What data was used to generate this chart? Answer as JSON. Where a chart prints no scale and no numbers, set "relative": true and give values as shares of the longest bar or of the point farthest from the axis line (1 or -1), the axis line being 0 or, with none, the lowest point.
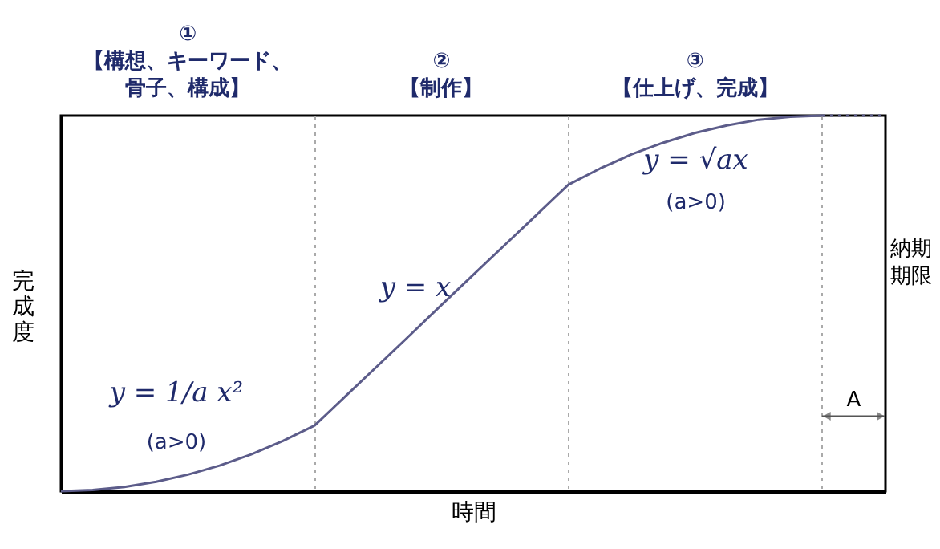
{
  "chart_data": {
    "type": "line",
    "relative": true,
    "xlabel": "時間",
    "ylabel": "完成度",
    "grid": "x",
    "categories": [
      null,
      null,
      null,
      null,
      null,
      null,
      null,
      null,
      null,
      null,
      null,
      null,
      null,
      null,
      null,
      null,
      null,
      null,
      null,
      null,
      null,
      null,
      null,
      null,
      null,
      null,
      null
    ],
    "series": [
      {
        "color": "#5c5c8a",
        "line_style": "solid",
        "values": [
          0,
          0.003,
          0.011,
          0.025,
          0.044,
          0.068,
          0.098,
          0.134,
          0.175,
          0.255,
          0.335,
          0.415,
          0.496,
          0.576,
          0.656,
          0.736,
          0.816,
          0.859,
          0.897,
          0.928,
          0.954,
          0.974,
          0.989,
          0.997,
          1,
          null,
          null
        ]
      },
      {
        "color": "#5c5c8a",
        "line_style": "dotted",
        "values": [
          null,
          null,
          null,
          null,
          null,
          null,
          null,
          null,
          null,
          null,
          null,
          null,
          null,
          null,
          null,
          null,
          null,
          null,
          null,
          null,
          null,
          null,
          null,
          null,
          1,
          1,
          1
        ]
      }
    ],
    "annotations": [
      "①【構想、キーワード、骨子、構成】",
      "②【制作】",
      "③【仕上げ、完成】",
      "y = 1/a x²",
      "(a>0)",
      "y = x",
      "y = √ax",
      "(a>0)",
      "納期期限",
      "A"
    ]
  }
}
